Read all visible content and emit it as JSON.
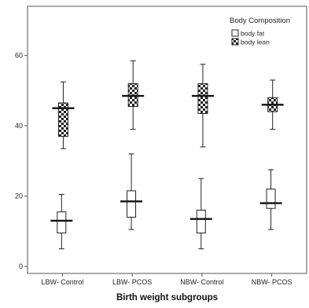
{
  "chart_data": {
    "type": "boxplot",
    "title": "",
    "xlabel": "Birth weight subgroups",
    "ylabel": "",
    "categories": [
      "LBW- Control",
      "LBW- PCOS",
      "NBW- Control",
      "NBW- PCOS"
    ],
    "ylim": [
      -2,
      74
    ],
    "yticks": [
      0,
      20,
      40,
      60
    ],
    "grid": false,
    "legend": {
      "title": "Body Composition",
      "placement": "top-right",
      "entries": [
        "body fat",
        "body lean"
      ]
    },
    "series": [
      {
        "name": "body fat",
        "fill": "hollow",
        "boxes": [
          {
            "category": "LBW- Control",
            "min": 5,
            "q1": 9.5,
            "median": 13,
            "q3": 15.5,
            "max": 20.5
          },
          {
            "category": "LBW- PCOS",
            "min": 10.5,
            "q1": 14,
            "median": 18.5,
            "q3": 21.5,
            "max": 32
          },
          {
            "category": "NBW- Control",
            "min": 5,
            "q1": 9.5,
            "median": 13.5,
            "q3": 16,
            "max": 25
          },
          {
            "category": "NBW- PCOS",
            "min": 10.5,
            "q1": 16.5,
            "median": 18,
            "q3": 22,
            "max": 27.5
          }
        ]
      },
      {
        "name": "body lean",
        "fill": "checkered",
        "boxes": [
          {
            "category": "LBW- Control",
            "min": 33.5,
            "q1": 37,
            "median": 45,
            "q3": 46.5,
            "max": 52.5
          },
          {
            "category": "LBW- PCOS",
            "min": 39,
            "q1": 45.5,
            "median": 48.5,
            "q3": 52,
            "max": 58.5
          },
          {
            "category": "NBW- Control",
            "min": 34,
            "q1": 43.5,
            "median": 48.5,
            "q3": 52,
            "max": 57.5
          },
          {
            "category": "NBW- PCOS",
            "min": 39,
            "q1": 44,
            "median": 46,
            "q3": 48,
            "max": 53
          }
        ]
      }
    ]
  }
}
